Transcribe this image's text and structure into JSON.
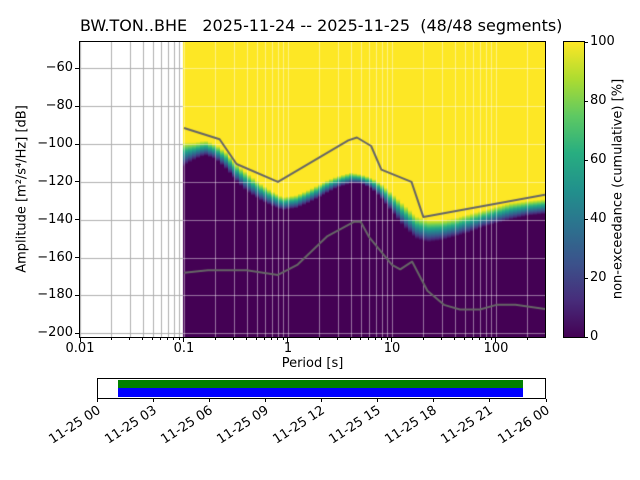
{
  "chart_data": {
    "type": "heatmap",
    "title": "BW.TON..BHE   2025-11-24 -- 2025-11-25  (48/48 segments)",
    "xlabel": "Period [s]",
    "ylabel": "Amplitude [m²/s⁴/Hz] [dB]",
    "colorbar_label": "non-exceedance (cumulative) [%]",
    "x_scale": "log",
    "xlim": [
      0.01,
      296
    ],
    "ylim": [
      -202,
      -46
    ],
    "x_ticks": [
      0.01,
      0.1,
      1,
      10,
      100
    ],
    "x_tick_labels": [
      "0.01",
      "0.1",
      "1",
      "10",
      "100"
    ],
    "y_ticks": [
      -60,
      -80,
      -100,
      -120,
      -140,
      -160,
      -180,
      -200
    ],
    "y_tick_labels": [
      "−60",
      "−80",
      "−100",
      "−120",
      "−140",
      "−160",
      "−180",
      "−200"
    ],
    "colorbar_ticks": [
      0,
      20,
      40,
      60,
      80,
      100
    ],
    "colorbar_tick_labels": [
      "0",
      "20",
      "40",
      "60",
      "80",
      "100"
    ],
    "colormap": [
      "#440154",
      "#472d7b",
      "#3b528b",
      "#2c728e",
      "#21918c",
      "#28ae80",
      "#5ec962",
      "#addc30",
      "#fde725"
    ],
    "grid_color": "#b0b0b0",
    "grid_over_data_color": "rgba(255,255,255,0.45)",
    "noise_model_color": "#666666",
    "data_period_range": [
      0.097,
      296
    ],
    "period_bin_step_decades": 0.037629,
    "cumulative_band": {
      "periods": [
        0.097,
        0.13,
        0.16,
        0.2,
        0.25,
        0.3,
        0.4,
        0.55,
        0.7,
        0.9,
        1.2,
        1.6,
        2.2,
        3,
        4,
        5,
        6.5,
        8,
        10,
        13,
        17,
        22,
        30,
        40,
        55,
        75,
        100,
        140,
        200,
        296
      ],
      "db_0pct": [
        -112,
        -108,
        -106,
        -108,
        -113,
        -118,
        -125,
        -130,
        -133,
        -135,
        -134,
        -131,
        -127,
        -123,
        -121,
        -121,
        -124,
        -129,
        -136,
        -144,
        -150,
        -152,
        -151,
        -149,
        -147,
        -144,
        -142,
        -140,
        -138,
        -137
      ],
      "db_100pct": [
        -99,
        -99,
        -98,
        -100,
        -104,
        -109,
        -115,
        -121,
        -125,
        -128,
        -127,
        -124,
        -120,
        -117,
        -115,
        -116,
        -118,
        -121,
        -126,
        -132,
        -138,
        -140,
        -140,
        -139,
        -137,
        -135,
        -133,
        -131,
        -130,
        -129
      ]
    },
    "noise_models": {
      "nhnm": {
        "periods": [
          0.1,
          0.22,
          0.32,
          0.8,
          3.8,
          4.6,
          6.3,
          7.9,
          15.4,
          20.0,
          296
        ],
        "db": [
          -91.5,
          -97.4,
          -110.5,
          -120.0,
          -98.0,
          -96.5,
          -101.0,
          -113.5,
          -120.0,
          -138.5,
          -126.8
        ]
      },
      "nlnm": {
        "periods": [
          0.1,
          0.17,
          0.4,
          0.8,
          1.24,
          2.4,
          4.3,
          5.0,
          6.0,
          10.0,
          12.0,
          15.6,
          21.9,
          31.6,
          45.0,
          70.0,
          101.0,
          154.0,
          296
        ],
        "db": [
          -168.0,
          -166.7,
          -166.7,
          -169.2,
          -163.7,
          -148.6,
          -141.1,
          -141.1,
          -149.0,
          -163.8,
          -166.2,
          -162.1,
          -177.5,
          -185.0,
          -187.5,
          -187.5,
          -185.0,
          -185.0,
          -187.2
        ]
      }
    }
  },
  "timeline": {
    "tick_labels": [
      "11-25 00",
      "11-25 03",
      "11-25 06",
      "11-25 09",
      "11-25 12",
      "11-25 15",
      "11-25 18",
      "11-25 21",
      "11-26 00"
    ],
    "data_color": "#008000",
    "segment_color": "#0000ff",
    "border_color": "#000000",
    "coverage_start_frac": 0.045,
    "coverage_end_frac": 0.951
  }
}
